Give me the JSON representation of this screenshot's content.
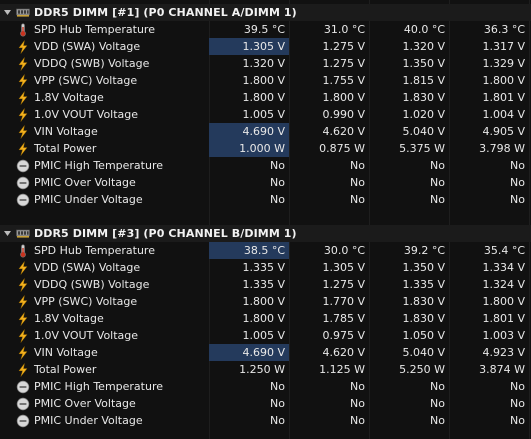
{
  "colors": {
    "background": "#111111",
    "group_row": "#1b1b1b",
    "highlight": "#243a5c",
    "bolt": "#f2b01e",
    "thermo": "#d9d9d9"
  },
  "groups": [
    {
      "title": "DDR5 DIMM [#1] (P0 CHANNEL A/DIMM 1)",
      "rows": [
        {
          "icon": "thermometer-icon",
          "label": "SPD Hub Temperature",
          "v1": "39.5 °C",
          "v2": "31.0 °C",
          "v3": "40.0 °C",
          "v4": "36.3 °C",
          "hl": false
        },
        {
          "icon": "lightning-icon",
          "label": "VDD (SWA) Voltage",
          "v1": "1.305 V",
          "v2": "1.275 V",
          "v3": "1.320 V",
          "v4": "1.317 V",
          "hl": true
        },
        {
          "icon": "lightning-icon",
          "label": "VDDQ (SWB) Voltage",
          "v1": "1.320 V",
          "v2": "1.275 V",
          "v3": "1.350 V",
          "v4": "1.329 V",
          "hl": false
        },
        {
          "icon": "lightning-icon",
          "label": "VPP (SWC) Voltage",
          "v1": "1.800 V",
          "v2": "1.755 V",
          "v3": "1.815 V",
          "v4": "1.800 V",
          "hl": false
        },
        {
          "icon": "lightning-icon",
          "label": "1.8V Voltage",
          "v1": "1.800 V",
          "v2": "1.800 V",
          "v3": "1.830 V",
          "v4": "1.801 V",
          "hl": false
        },
        {
          "icon": "lightning-icon",
          "label": "1.0V VOUT Voltage",
          "v1": "1.005 V",
          "v2": "0.990 V",
          "v3": "1.020 V",
          "v4": "1.004 V",
          "hl": false
        },
        {
          "icon": "lightning-icon",
          "label": "VIN Voltage",
          "v1": "4.690 V",
          "v2": "4.620 V",
          "v3": "5.040 V",
          "v4": "4.905 V",
          "hl": true
        },
        {
          "icon": "lightning-icon",
          "label": "Total Power",
          "v1": "1.000 W",
          "v2": "0.875 W",
          "v3": "5.375 W",
          "v4": "3.798 W",
          "hl": true
        },
        {
          "icon": "status-icon",
          "label": "PMIC High Temperature",
          "v1": "No",
          "v2": "No",
          "v3": "No",
          "v4": "No",
          "hl": false
        },
        {
          "icon": "status-icon",
          "label": "PMIC Over Voltage",
          "v1": "No",
          "v2": "No",
          "v3": "No",
          "v4": "No",
          "hl": false
        },
        {
          "icon": "status-icon",
          "label": "PMIC Under Voltage",
          "v1": "No",
          "v2": "No",
          "v3": "No",
          "v4": "No",
          "hl": false
        }
      ]
    },
    {
      "title": "DDR5 DIMM [#3] (P0 CHANNEL B/DIMM 1)",
      "rows": [
        {
          "icon": "thermometer-icon",
          "label": "SPD Hub Temperature",
          "v1": "38.5 °C",
          "v2": "30.0 °C",
          "v3": "39.2 °C",
          "v4": "35.4 °C",
          "hl": true
        },
        {
          "icon": "lightning-icon",
          "label": "VDD (SWA) Voltage",
          "v1": "1.335 V",
          "v2": "1.305 V",
          "v3": "1.350 V",
          "v4": "1.334 V",
          "hl": false
        },
        {
          "icon": "lightning-icon",
          "label": "VDDQ (SWB) Voltage",
          "v1": "1.335 V",
          "v2": "1.275 V",
          "v3": "1.335 V",
          "v4": "1.324 V",
          "hl": false
        },
        {
          "icon": "lightning-icon",
          "label": "VPP (SWC) Voltage",
          "v1": "1.800 V",
          "v2": "1.770 V",
          "v3": "1.830 V",
          "v4": "1.800 V",
          "hl": false
        },
        {
          "icon": "lightning-icon",
          "label": "1.8V Voltage",
          "v1": "1.800 V",
          "v2": "1.785 V",
          "v3": "1.830 V",
          "v4": "1.801 V",
          "hl": false
        },
        {
          "icon": "lightning-icon",
          "label": "1.0V VOUT Voltage",
          "v1": "1.005 V",
          "v2": "0.975 V",
          "v3": "1.050 V",
          "v4": "1.003 V",
          "hl": false
        },
        {
          "icon": "lightning-icon",
          "label": "VIN Voltage",
          "v1": "4.690 V",
          "v2": "4.620 V",
          "v3": "5.040 V",
          "v4": "4.923 V",
          "hl": true
        },
        {
          "icon": "lightning-icon",
          "label": "Total Power",
          "v1": "1.250 W",
          "v2": "1.125 W",
          "v3": "5.250 W",
          "v4": "3.874 W",
          "hl": false
        },
        {
          "icon": "status-icon",
          "label": "PMIC High Temperature",
          "v1": "No",
          "v2": "No",
          "v3": "No",
          "v4": "No",
          "hl": false
        },
        {
          "icon": "status-icon",
          "label": "PMIC Over Voltage",
          "v1": "No",
          "v2": "No",
          "v3": "No",
          "v4": "No",
          "hl": false
        },
        {
          "icon": "status-icon",
          "label": "PMIC Under Voltage",
          "v1": "No",
          "v2": "No",
          "v3": "No",
          "v4": "No",
          "hl": false
        }
      ]
    }
  ]
}
